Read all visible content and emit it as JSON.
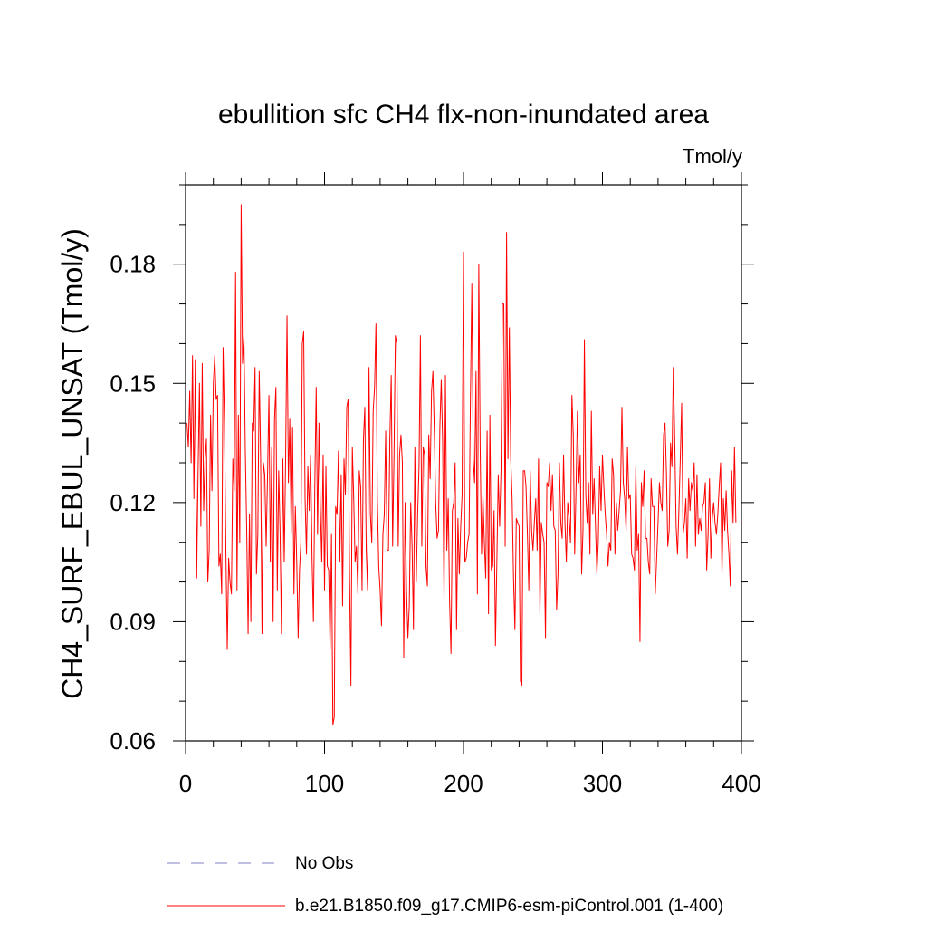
{
  "chart_data": {
    "type": "line",
    "title": "ebullition sfc CH4 flx-non-inundated area",
    "units_label": "Tmol/y",
    "xlabel": "",
    "ylabel": "CH4_SURF_EBUL_UNSAT  (Tmol/y)",
    "xlim": [
      0,
      400
    ],
    "ylim": [
      0.06,
      0.2
    ],
    "xticks": [
      0,
      100,
      200,
      300,
      400
    ],
    "xtick_labels": [
      "0",
      "100",
      "200",
      "300",
      "400"
    ],
    "yticks": [
      0.06,
      0.09,
      0.12,
      0.15,
      0.18
    ],
    "ytick_labels": [
      "0.06",
      "0.09",
      "0.12",
      "0.15",
      "0.18"
    ],
    "x_minor_step": 20,
    "y_minor_step": 0.01,
    "series": [
      {
        "name": "b.e21.B1850.f09_g17.CMIP6-esm-piControl.001 (1-400)",
        "color": "#ff0000",
        "style": "solid",
        "x_start": 1,
        "values": [
          0.14,
          0.134,
          0.148,
          0.13,
          0.157,
          0.121,
          0.156,
          0.101,
          0.128,
          0.15,
          0.114,
          0.155,
          0.118,
          0.131,
          0.136,
          0.1,
          0.108,
          0.142,
          0.123,
          0.15,
          0.157,
          0.146,
          0.147,
          0.104,
          0.107,
          0.097,
          0.159,
          0.14,
          0.108,
          0.083,
          0.106,
          0.1,
          0.097,
          0.131,
          0.123,
          0.178,
          0.098,
          0.142,
          0.11,
          0.195,
          0.155,
          0.162,
          0.133,
          0.113,
          0.087,
          0.117,
          0.09,
          0.14,
          0.138,
          0.154,
          0.102,
          0.112,
          0.153,
          0.132,
          0.087,
          0.13,
          0.127,
          0.109,
          0.127,
          0.147,
          0.105,
          0.134,
          0.09,
          0.141,
          0.149,
          0.098,
          0.128,
          0.113,
          0.087,
          0.131,
          0.105,
          0.131,
          0.167,
          0.125,
          0.141,
          0.112,
          0.139,
          0.097,
          0.119,
          0.105,
          0.086,
          0.103,
          0.11,
          0.16,
          0.163,
          0.121,
          0.107,
          0.129,
          0.118,
          0.132,
          0.106,
          0.09,
          0.124,
          0.149,
          0.112,
          0.14,
          0.119,
          0.105,
          0.132,
          0.098,
          0.129,
          0.104,
          0.103,
          0.083,
          0.112,
          0.064,
          0.066,
          0.119,
          0.117,
          0.133,
          0.105,
          0.127,
          0.094,
          0.131,
          0.122,
          0.144,
          0.146,
          0.101,
          0.074,
          0.134,
          0.121,
          0.105,
          0.109,
          0.097,
          0.128,
          0.124,
          0.098,
          0.136,
          0.144,
          0.108,
          0.098,
          0.154,
          0.117,
          0.11,
          0.143,
          0.149,
          0.165,
          0.121,
          0.104,
          0.098,
          0.089,
          0.112,
          0.117,
          0.138,
          0.108,
          0.108,
          0.136,
          0.152,
          0.109,
          0.132,
          0.162,
          0.16,
          0.109,
          0.132,
          0.137,
          0.13,
          0.081,
          0.12,
          0.098,
          0.086,
          0.094,
          0.12,
          0.109,
          0.088,
          0.134,
          0.1,
          0.117,
          0.129,
          0.162,
          0.109,
          0.134,
          0.132,
          0.104,
          0.099,
          0.137,
          0.126,
          0.148,
          0.153,
          0.138,
          0.12,
          0.111,
          0.113,
          0.139,
          0.151,
          0.135,
          0.095,
          0.152,
          0.108,
          0.121,
          0.095,
          0.082,
          0.118,
          0.12,
          0.13,
          0.088,
          0.116,
          0.102,
          0.114,
          0.122,
          0.183,
          0.105,
          0.106,
          0.11,
          0.112,
          0.146,
          0.175,
          0.131,
          0.125,
          0.153,
          0.097,
          0.18,
          0.134,
          0.107,
          0.122,
          0.11,
          0.101,
          0.138,
          0.092,
          0.142,
          0.103,
          0.104,
          0.118,
          0.084,
          0.105,
          0.127,
          0.114,
          0.128,
          0.17,
          0.17,
          0.109,
          0.188,
          0.131,
          0.164,
          0.131,
          0.121,
          0.101,
          0.088,
          0.116,
          0.115,
          0.114,
          0.075,
          0.074,
          0.128,
          0.128,
          0.124,
          0.112,
          0.098,
          0.128,
          0.113,
          0.108,
          0.115,
          0.121,
          0.108,
          0.131,
          0.092,
          0.115,
          0.112,
          0.11,
          0.086,
          0.125,
          0.124,
          0.13,
          0.118,
          0.127,
          0.114,
          0.113,
          0.093,
          0.102,
          0.13,
          0.115,
          0.111,
          0.132,
          0.115,
          0.105,
          0.12,
          0.116,
          0.11,
          0.147,
          0.137,
          0.107,
          0.124,
          0.143,
          0.125,
          0.132,
          0.102,
          0.113,
          0.161,
          0.122,
          0.115,
          0.125,
          0.107,
          0.143,
          0.117,
          0.126,
          0.114,
          0.102,
          0.11,
          0.129,
          0.118,
          0.132,
          0.124,
          0.117,
          0.112,
          0.104,
          0.11,
          0.108,
          0.131,
          0.127,
          0.107,
          0.12,
          0.113,
          0.118,
          0.123,
          0.144,
          0.125,
          0.121,
          0.113,
          0.134,
          0.121,
          0.122,
          0.107,
          0.106,
          0.103,
          0.129,
          0.108,
          0.112,
          0.085,
          0.125,
          0.119,
          0.128,
          0.111,
          0.111,
          0.105,
          0.102,
          0.126,
          0.119,
          0.119,
          0.097,
          0.106,
          0.115,
          0.125,
          0.12,
          0.118,
          0.137,
          0.14,
          0.128,
          0.109,
          0.113,
          0.135,
          0.129,
          0.154,
          0.136,
          0.114,
          0.107,
          0.118,
          0.131,
          0.145,
          0.112,
          0.115,
          0.121,
          0.106,
          0.126,
          0.118,
          0.125,
          0.123,
          0.13,
          0.109,
          0.127,
          0.112,
          0.116,
          0.113,
          0.119,
          0.12,
          0.125,
          0.103,
          0.112,
          0.126,
          0.106,
          0.116,
          0.12,
          0.115,
          0.112,
          0.117,
          0.124,
          0.13,
          0.102,
          0.121,
          0.113,
          0.123,
          0.113,
          0.107,
          0.099,
          0.128,
          0.115,
          0.134,
          0.115
        ]
      },
      {
        "name": "No Obs",
        "color": "#8080c0",
        "style": "dashed",
        "values": []
      }
    ],
    "legend": "bottom"
  }
}
